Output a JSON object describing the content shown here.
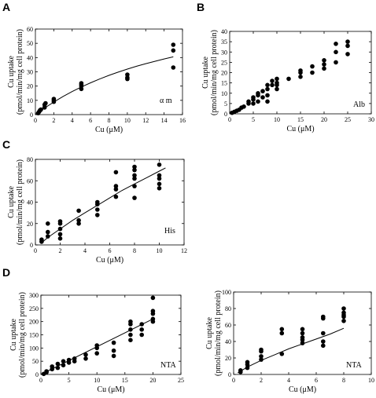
{
  "chart_data": [
    {
      "panel": "A",
      "type": "scatter",
      "annotation": "α m",
      "xlabel": "Cu (μM)",
      "ylabel": [
        "Cu uptake",
        "(pmol/min/mg cell protein)"
      ],
      "xlim": [
        0,
        16
      ],
      "ylim": [
        0,
        60
      ],
      "xticks": [
        0,
        2,
        4,
        6,
        8,
        10,
        12,
        14,
        16
      ],
      "yticks": [
        0,
        10,
        20,
        30,
        40,
        50,
        60
      ],
      "points": [
        [
          0.3,
          1
        ],
        [
          0.4,
          2
        ],
        [
          0.5,
          3
        ],
        [
          0.6,
          3.5
        ],
        [
          1,
          5
        ],
        [
          1,
          7
        ],
        [
          1.1,
          8
        ],
        [
          2,
          9
        ],
        [
          2,
          10
        ],
        [
          2,
          11
        ],
        [
          5,
          18
        ],
        [
          5,
          20
        ],
        [
          5,
          21
        ],
        [
          5,
          22
        ],
        [
          10,
          25
        ],
        [
          10,
          26
        ],
        [
          10,
          28
        ],
        [
          15,
          33
        ],
        [
          15,
          45
        ],
        [
          15,
          49
        ]
      ],
      "curve": [
        [
          0,
          0
        ],
        [
          1,
          4.6
        ],
        [
          2,
          8.8
        ],
        [
          3,
          12.7
        ],
        [
          4,
          16.2
        ],
        [
          5,
          19.4
        ],
        [
          6,
          22.3
        ],
        [
          7,
          25
        ],
        [
          8,
          27.5
        ],
        [
          9,
          29.8
        ],
        [
          10,
          31.9
        ],
        [
          11,
          33.9
        ],
        [
          12,
          35.7
        ],
        [
          13,
          37.4
        ],
        [
          14,
          39
        ],
        [
          15,
          40.5
        ]
      ]
    },
    {
      "panel": "B",
      "type": "scatter",
      "annotation": "Alb",
      "xlabel": "Cu (μM)",
      "ylabel": [
        "Cu uptake",
        "(pmol/min/mg cell protein)"
      ],
      "xlim": [
        0,
        30
      ],
      "ylim": [
        0,
        40
      ],
      "xticks": [
        0,
        5,
        10,
        15,
        20,
        25,
        30
      ],
      "yticks": [
        0,
        5,
        10,
        15,
        20,
        25,
        30,
        35,
        40
      ],
      "points": [
        [
          0.5,
          0.5
        ],
        [
          1,
          1
        ],
        [
          1.5,
          1.5
        ],
        [
          2,
          2
        ],
        [
          2.5,
          3
        ],
        [
          3,
          3.5
        ],
        [
          4,
          5
        ],
        [
          4,
          6
        ],
        [
          5,
          5
        ],
        [
          5,
          7
        ],
        [
          5,
          8
        ],
        [
          6,
          6
        ],
        [
          6,
          9
        ],
        [
          6,
          10
        ],
        [
          7,
          8
        ],
        [
          7,
          11
        ],
        [
          8,
          6
        ],
        [
          8,
          9
        ],
        [
          8,
          12
        ],
        [
          8,
          14
        ],
        [
          9,
          14
        ],
        [
          9,
          16
        ],
        [
          10,
          12
        ],
        [
          10,
          14
        ],
        [
          10,
          15
        ],
        [
          10,
          17
        ],
        [
          12.5,
          17
        ],
        [
          15,
          18
        ],
        [
          15,
          20
        ],
        [
          15,
          21
        ],
        [
          17.5,
          20
        ],
        [
          17.5,
          23
        ],
        [
          20,
          22
        ],
        [
          20,
          24
        ],
        [
          20,
          26
        ],
        [
          22.5,
          25
        ],
        [
          22.5,
          30
        ],
        [
          22.5,
          34
        ],
        [
          25,
          29
        ],
        [
          25,
          33
        ],
        [
          25,
          35
        ]
      ],
      "curve": []
    },
    {
      "panel": "C",
      "type": "scatter",
      "annotation": "His",
      "xlabel": "Cu (μM)",
      "ylabel": [
        "Cu uptake",
        "(pmol/min/mg cell protein)"
      ],
      "xlim": [
        0,
        12
      ],
      "ylim": [
        0,
        80
      ],
      "xticks": [
        0,
        2,
        4,
        6,
        8,
        10,
        12
      ],
      "yticks": [
        0,
        20,
        40,
        60,
        80
      ],
      "points": [
        [
          0.5,
          3
        ],
        [
          0.5,
          5
        ],
        [
          1,
          8
        ],
        [
          1,
          12
        ],
        [
          1,
          20
        ],
        [
          2,
          6
        ],
        [
          2,
          10
        ],
        [
          2,
          15
        ],
        [
          2,
          20
        ],
        [
          2,
          22
        ],
        [
          3.5,
          20
        ],
        [
          3.5,
          23
        ],
        [
          3.5,
          32
        ],
        [
          5,
          28
        ],
        [
          5,
          33
        ],
        [
          5,
          38
        ],
        [
          5,
          40
        ],
        [
          6.5,
          45
        ],
        [
          6.5,
          52
        ],
        [
          6.5,
          55
        ],
        [
          6.5,
          68
        ],
        [
          8,
          44
        ],
        [
          8,
          55
        ],
        [
          8,
          62
        ],
        [
          8,
          65
        ],
        [
          8,
          70
        ],
        [
          8,
          73
        ],
        [
          10,
          53
        ],
        [
          10,
          57
        ],
        [
          10,
          62
        ],
        [
          10,
          65
        ],
        [
          10,
          75
        ]
      ],
      "curve": [
        [
          0.5,
          2
        ],
        [
          1,
          7
        ],
        [
          2,
          15
        ],
        [
          3,
          23
        ],
        [
          4,
          30
        ],
        [
          5,
          37
        ],
        [
          6,
          44
        ],
        [
          7,
          51
        ],
        [
          8,
          57
        ],
        [
          9,
          63
        ],
        [
          10,
          69
        ],
        [
          10.5,
          72
        ]
      ]
    },
    {
      "panel": "D",
      "type": "scatter",
      "annotation": "NTA",
      "xlabel": "Cu (μM)",
      "ylabel": [
        "Cu uptake",
        "(pmol/min/mg cell protein)"
      ],
      "xlim": [
        0,
        25
      ],
      "ylim": [
        0,
        300
      ],
      "xticks": [
        0,
        5,
        10,
        15,
        20,
        25
      ],
      "yticks": [
        0,
        50,
        100,
        150,
        200,
        250,
        300
      ],
      "points": [
        [
          0.5,
          2
        ],
        [
          1,
          8
        ],
        [
          1,
          12
        ],
        [
          2,
          20
        ],
        [
          2,
          30
        ],
        [
          3,
          25
        ],
        [
          3,
          40
        ],
        [
          4,
          35
        ],
        [
          4,
          50
        ],
        [
          5,
          45
        ],
        [
          5,
          55
        ],
        [
          6,
          50
        ],
        [
          6,
          60
        ],
        [
          8,
          60
        ],
        [
          8,
          75
        ],
        [
          10,
          80
        ],
        [
          10,
          100
        ],
        [
          10,
          110
        ],
        [
          13,
          70
        ],
        [
          13,
          90
        ],
        [
          13,
          120
        ],
        [
          16,
          130
        ],
        [
          16,
          150
        ],
        [
          16,
          170
        ],
        [
          16,
          190
        ],
        [
          16,
          200
        ],
        [
          18,
          150
        ],
        [
          18,
          170
        ],
        [
          18,
          190
        ],
        [
          20,
          200
        ],
        [
          20,
          210
        ],
        [
          20,
          230
        ],
        [
          20,
          240
        ],
        [
          20,
          290
        ]
      ],
      "line": [
        [
          0,
          0
        ],
        [
          20,
          210
        ]
      ]
    },
    {
      "panel": "D2",
      "type": "scatter",
      "annotation": "NTA",
      "xlabel": "Cu (μM)",
      "ylabel": [
        "Cu uptake",
        "(pmol/min/mg cell protein)"
      ],
      "xlim": [
        0,
        10
      ],
      "ylim": [
        0,
        100
      ],
      "xticks": [
        0,
        2,
        4,
        6,
        8,
        10
      ],
      "yticks": [
        0,
        20,
        40,
        60,
        80,
        100
      ],
      "points": [
        [
          0.5,
          3
        ],
        [
          0.5,
          5
        ],
        [
          1,
          8
        ],
        [
          1,
          12
        ],
        [
          1,
          15
        ],
        [
          2,
          18
        ],
        [
          2,
          22
        ],
        [
          2,
          28
        ],
        [
          2,
          30
        ],
        [
          3.5,
          25
        ],
        [
          3.5,
          50
        ],
        [
          3.5,
          55
        ],
        [
          5,
          38
        ],
        [
          5,
          42
        ],
        [
          5,
          45
        ],
        [
          5,
          50
        ],
        [
          5,
          55
        ],
        [
          6.5,
          35
        ],
        [
          6.5,
          40
        ],
        [
          6.5,
          50
        ],
        [
          6.5,
          68
        ],
        [
          6.5,
          70
        ],
        [
          8,
          65
        ],
        [
          8,
          70
        ],
        [
          8,
          72
        ],
        [
          8,
          75
        ],
        [
          8,
          80
        ]
      ],
      "curve": [
        [
          0.3,
          2
        ],
        [
          1,
          9
        ],
        [
          2,
          17
        ],
        [
          3,
          24
        ],
        [
          4,
          31
        ],
        [
          5,
          37
        ],
        [
          6,
          43
        ],
        [
          7,
          49
        ],
        [
          8,
          56
        ]
      ]
    }
  ],
  "labels": {
    "A": "A",
    "B": "B",
    "C": "C",
    "D": "D"
  }
}
